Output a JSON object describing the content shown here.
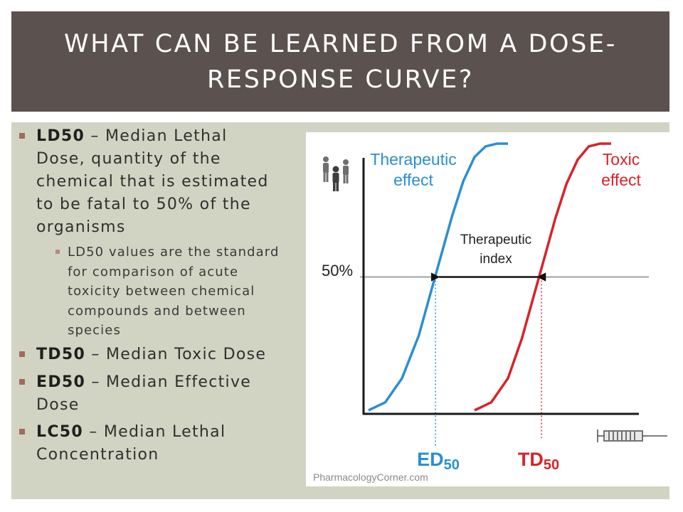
{
  "slide": {
    "title_line1": "WHAT CAN BE LEARNED FROM A DOSE-",
    "title_line2": "RESPONSE CURVE?"
  },
  "bullets": [
    {
      "term": "LD50",
      "sep": " – ",
      "lines": [
        "Median Lethal",
        "Dose, quantity of the",
        "chemical that is estimated",
        "to be fatal to 50% of the",
        "organisms"
      ]
    },
    {
      "term": "TD50",
      "sep": " – ",
      "lines": [
        "Median Toxic Dose"
      ]
    },
    {
      "term": "ED50",
      "sep": " – ",
      "lines": [
        "Median Effective",
        "Dose"
      ]
    },
    {
      "term": "LC50",
      "sep": " – ",
      "lines": [
        "Median Lethal",
        "Concentration"
      ]
    }
  ],
  "sub_bullet": {
    "lines": [
      "LD50 values are the standard",
      "for comparison of acute",
      "toxicity between chemical",
      "compounds and between",
      "species"
    ]
  },
  "figure": {
    "therapeutic_label": [
      "Therapeutic",
      "effect"
    ],
    "toxic_label": [
      "Toxic",
      "effect"
    ],
    "fifty_label": "50%",
    "index_label": [
      "Therapeutic",
      "index"
    ],
    "ed_label": "ED",
    "ed_sub": "50",
    "td_label": "TD",
    "td_sub": "50",
    "credit": "PharmacologyCorner.com",
    "colors": {
      "therapeutic": "#2a8fd1",
      "toxic": "#d6232a",
      "reference": "#9fa1a3",
      "axis": "#1a1a1a",
      "credit": "#8a8a8a"
    },
    "icons": [
      "people-icon",
      "syringe-icon"
    ]
  },
  "chart_data": {
    "type": "line",
    "title": "",
    "xlabel": "",
    "ylabel": "",
    "reference_line": {
      "label": "50%",
      "y": 0.5
    },
    "series": [
      {
        "name": "Therapeutic effect",
        "x": [
          0.0,
          0.06,
          0.12,
          0.18,
          0.22,
          0.26,
          0.3,
          0.34,
          0.38,
          0.42,
          0.46,
          0.5
        ],
        "y": [
          0.0,
          0.03,
          0.12,
          0.28,
          0.43,
          0.58,
          0.73,
          0.86,
          0.95,
          0.99,
          1.0,
          1.0
        ]
      },
      {
        "name": "Toxic effect",
        "x": [
          0.38,
          0.44,
          0.5,
          0.55,
          0.59,
          0.63,
          0.67,
          0.71,
          0.75,
          0.79,
          0.83,
          0.87
        ],
        "y": [
          0.0,
          0.03,
          0.12,
          0.27,
          0.42,
          0.57,
          0.72,
          0.85,
          0.94,
          0.99,
          1.0,
          1.0
        ]
      }
    ],
    "markers": [
      {
        "label": "ED50",
        "x": 0.24,
        "y": 0.5
      },
      {
        "label": "TD50",
        "x": 0.62,
        "y": 0.5
      }
    ],
    "annotation": {
      "label": "Therapeutic index",
      "from": "ED50",
      "to": "TD50"
    }
  }
}
